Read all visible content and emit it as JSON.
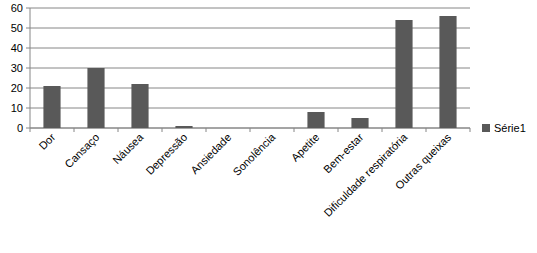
{
  "chart_data": {
    "type": "bar",
    "categories": [
      "Dor",
      "Cansaço",
      "Náusea",
      "Depressão",
      "Ansiedade",
      "Sonolência",
      "Apetite",
      "Bem-estar",
      "Dificuldade respiratória",
      "Outras queixas"
    ],
    "series": [
      {
        "name": "Série1",
        "color": "#595959",
        "values": [
          21,
          30,
          22,
          1,
          0,
          0,
          8,
          5,
          54,
          56
        ]
      }
    ],
    "ylim": [
      0,
      60
    ],
    "yticks": [
      0,
      10,
      20,
      30,
      40,
      50,
      60
    ],
    "grid": true,
    "legend": "right"
  }
}
